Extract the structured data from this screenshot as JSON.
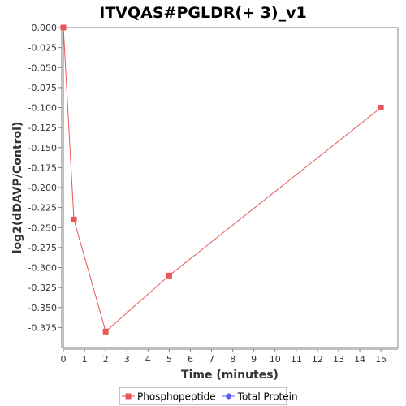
{
  "chart_data": {
    "type": "line",
    "title": "ITVQAS#PGLDR(+ 3)_v1",
    "xlabel": "Time (minutes)",
    "ylabel": "log2(dDAVP/Control)",
    "xlim": [
      0,
      15.8
    ],
    "ylim": [
      -0.4,
      0.0
    ],
    "x_ticks": [
      0,
      1,
      2,
      3,
      4,
      5,
      6,
      7,
      8,
      9,
      10,
      11,
      12,
      13,
      14,
      15
    ],
    "y_ticks": [
      0.0,
      -0.025,
      -0.05,
      -0.075,
      -0.1,
      -0.125,
      -0.15,
      -0.175,
      -0.2,
      -0.225,
      -0.25,
      -0.275,
      -0.3,
      -0.325,
      -0.35,
      -0.375
    ],
    "y_tick_labels": [
      "0.000",
      "-0.025",
      "-0.050",
      "-0.075",
      "-0.100",
      "-0.125",
      "-0.150",
      "-0.175",
      "-0.200",
      "-0.225",
      "-0.250",
      "-0.275",
      "-0.300",
      "-0.325",
      "-0.350",
      "-0.375"
    ],
    "grid": false,
    "legend_position": "bottom",
    "series": [
      {
        "name": "Phosphopeptide",
        "color": "#e85656",
        "marker": "square",
        "x": [
          0,
          0.5,
          2,
          5,
          15
        ],
        "y": [
          0.0,
          -0.24,
          -0.38,
          -0.31,
          -0.1
        ]
      },
      {
        "name": "Total Protein",
        "color": "#5b5bef",
        "marker": "circle",
        "x": [],
        "y": []
      }
    ]
  }
}
